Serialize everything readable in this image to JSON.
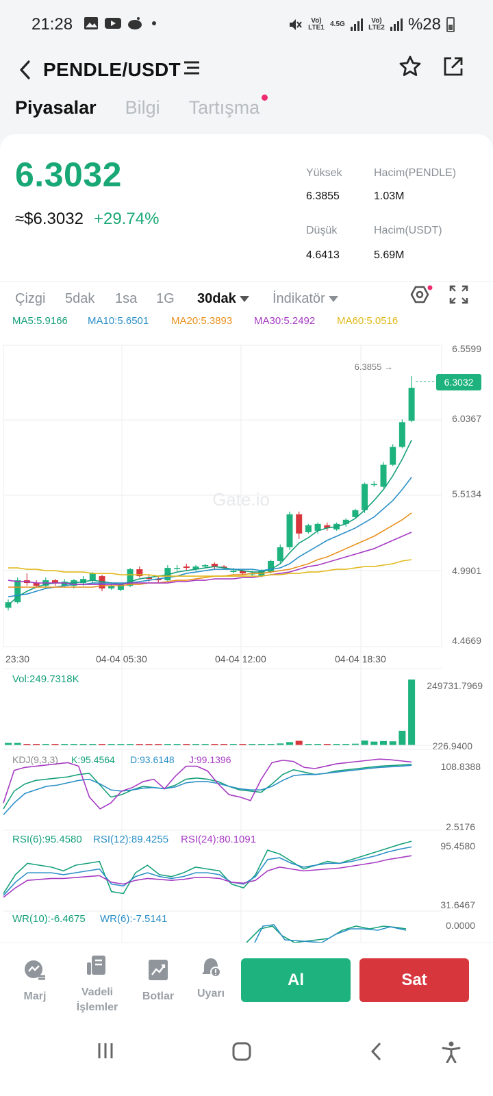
{
  "status_bar": {
    "time": "21:28",
    "left_icons": [
      "image-icon",
      "youtube-icon",
      "reddit-icon"
    ],
    "sim1_label": "Vo) LTE1",
    "net_label": "4.5G",
    "sim2_label": "Vo) LTE2",
    "battery_text": "%28"
  },
  "header": {
    "pair": "PENDLE/USDT",
    "icons": [
      "back-icon",
      "menu-icon",
      "star-icon",
      "share-icon"
    ]
  },
  "tabs": [
    {
      "label": "Piyasalar",
      "active": true
    },
    {
      "label": "Bilgi",
      "active": false
    },
    {
      "label": "Tartışma",
      "active": false,
      "notification_dot": true
    }
  ],
  "price": {
    "last": "6.3032",
    "usd": "≈$6.3032",
    "change": "+29.74%",
    "high_label": "Yüksek",
    "high_value": "6.3855",
    "low_label": "Düşük",
    "low_value": "4.6413",
    "vol_base_label": "Hacim(PENDLE)",
    "vol_base_value": "1.03M",
    "vol_quote_label": "Hacim(USDT)",
    "vol_quote_value": "5.69M"
  },
  "toolbar": {
    "items": [
      "Çizgi",
      "5dak",
      "1sa",
      "1G",
      "30dak",
      "İndikatör"
    ],
    "active": "30dak"
  },
  "ma_legend": [
    {
      "label": "MA5:5.9166",
      "color": "#16a07a"
    },
    {
      "label": "MA10:5.6501",
      "color": "#2b8fc7"
    },
    {
      "label": "MA20:5.3893",
      "color": "#e8911e"
    },
    {
      "label": "MA30:5.2492",
      "color": "#a63bc2"
    },
    {
      "label": "MA60:5.0516",
      "color": "#e0b91b"
    }
  ],
  "chart_data": {
    "type": "candlestick",
    "y_ticks": [
      "6.5599",
      "6.0367",
      "5.5134",
      "4.9901",
      "4.4669"
    ],
    "ylim": [
      4.4669,
      6.5599
    ],
    "x_ticks": [
      "23:30",
      "04-04 05:30",
      "04-04 12:00",
      "04-04 18:30"
    ],
    "high_marker": "6.3855",
    "last_price_tag": "6.3032",
    "watermark": "Gate.io",
    "candles": [
      {
        "o": 4.7,
        "c": 4.74,
        "h": 4.76,
        "l": 4.68
      },
      {
        "o": 4.74,
        "c": 4.9,
        "h": 4.92,
        "l": 4.73
      },
      {
        "o": 4.9,
        "c": 4.88,
        "h": 4.95,
        "l": 4.86
      },
      {
        "o": 4.88,
        "c": 4.86,
        "h": 4.9,
        "l": 4.85
      },
      {
        "o": 4.86,
        "c": 4.9,
        "h": 4.92,
        "l": 4.84
      },
      {
        "o": 4.9,
        "c": 4.88,
        "h": 4.91,
        "l": 4.86
      },
      {
        "o": 4.86,
        "c": 4.89,
        "h": 4.91,
        "l": 4.85
      },
      {
        "o": 4.86,
        "c": 4.9,
        "h": 4.91,
        "l": 4.84
      },
      {
        "o": 4.88,
        "c": 4.91,
        "h": 4.93,
        "l": 4.86
      },
      {
        "o": 4.9,
        "c": 4.95,
        "h": 4.96,
        "l": 4.88
      },
      {
        "o": 4.93,
        "c": 4.84,
        "h": 4.94,
        "l": 4.82
      },
      {
        "o": 4.84,
        "c": 4.86,
        "h": 4.88,
        "l": 4.83
      },
      {
        "o": 4.83,
        "c": 4.87,
        "h": 4.88,
        "l": 4.82
      },
      {
        "o": 4.86,
        "c": 4.98,
        "h": 4.99,
        "l": 4.85
      },
      {
        "o": 4.98,
        "c": 4.93,
        "h": 5.0,
        "l": 4.92
      },
      {
        "o": 4.92,
        "c": 4.91,
        "h": 4.94,
        "l": 4.89
      },
      {
        "o": 4.91,
        "c": 4.9,
        "h": 4.93,
        "l": 4.88
      },
      {
        "o": 4.9,
        "c": 4.99,
        "h": 5.01,
        "l": 4.89
      },
      {
        "o": 4.99,
        "c": 4.99,
        "h": 5.01,
        "l": 4.97
      },
      {
        "o": 5.0,
        "c": 4.99,
        "h": 5.02,
        "l": 4.97
      },
      {
        "o": 4.98,
        "c": 5.0,
        "h": 5.01,
        "l": 4.97
      },
      {
        "o": 5.0,
        "c": 5.01,
        "h": 5.02,
        "l": 4.99
      },
      {
        "o": 5.02,
        "c": 5.0,
        "h": 5.03,
        "l": 4.98
      },
      {
        "o": 5.0,
        "c": 4.99,
        "h": 5.01,
        "l": 4.98
      },
      {
        "o": 4.96,
        "c": 4.97,
        "h": 4.99,
        "l": 4.95
      },
      {
        "o": 4.97,
        "c": 4.95,
        "h": 4.98,
        "l": 4.94
      },
      {
        "o": 4.95,
        "c": 4.95,
        "h": 4.97,
        "l": 4.93
      },
      {
        "o": 4.93,
        "c": 4.97,
        "h": 4.98,
        "l": 4.92
      },
      {
        "o": 4.96,
        "c": 5.04,
        "h": 5.05,
        "l": 4.95
      },
      {
        "o": 5.04,
        "c": 5.14,
        "h": 5.16,
        "l": 5.02
      },
      {
        "o": 5.14,
        "c": 5.38,
        "h": 5.4,
        "l": 5.12
      },
      {
        "o": 5.38,
        "c": 5.24,
        "h": 5.4,
        "l": 5.2
      },
      {
        "o": 5.25,
        "c": 5.3,
        "h": 5.31,
        "l": 5.24
      },
      {
        "o": 5.26,
        "c": 5.31,
        "h": 5.32,
        "l": 5.24
      },
      {
        "o": 5.3,
        "c": 5.28,
        "h": 5.32,
        "l": 5.26
      },
      {
        "o": 5.27,
        "c": 5.31,
        "h": 5.32,
        "l": 5.26
      },
      {
        "o": 5.31,
        "c": 5.34,
        "h": 5.35,
        "l": 5.29
      },
      {
        "o": 5.36,
        "c": 5.41,
        "h": 5.42,
        "l": 5.35
      },
      {
        "o": 5.41,
        "c": 5.6,
        "h": 5.61,
        "l": 5.39
      },
      {
        "o": 5.6,
        "c": 5.6,
        "h": 5.62,
        "l": 5.58
      },
      {
        "o": 5.58,
        "c": 5.74,
        "h": 5.76,
        "l": 5.57
      },
      {
        "o": 5.74,
        "c": 5.87,
        "h": 5.89,
        "l": 5.73
      },
      {
        "o": 5.87,
        "c": 6.05,
        "h": 6.07,
        "l": 5.86
      },
      {
        "o": 6.06,
        "c": 6.3,
        "h": 6.3855,
        "l": 6.05
      }
    ],
    "ma_lines": {
      "MA5": [
        4.72,
        4.78,
        4.82,
        4.85,
        4.87,
        4.88,
        4.88,
        4.88,
        4.89,
        4.9,
        4.89,
        4.88,
        4.87,
        4.89,
        4.91,
        4.92,
        4.93,
        4.94,
        4.96,
        4.97,
        4.98,
        4.99,
        5.0,
        4.99,
        4.98,
        4.97,
        4.96,
        4.96,
        4.98,
        5.02,
        5.1,
        5.17,
        5.21,
        5.26,
        5.28,
        5.29,
        5.31,
        5.35,
        5.41,
        5.48,
        5.56,
        5.66,
        5.78,
        5.92
      ],
      "MA10": [
        4.78,
        4.79,
        4.8,
        4.82,
        4.84,
        4.85,
        4.86,
        4.87,
        4.87,
        4.88,
        4.88,
        4.88,
        4.88,
        4.88,
        4.89,
        4.9,
        4.91,
        4.92,
        4.93,
        4.95,
        4.96,
        4.97,
        4.98,
        4.98,
        4.98,
        4.98,
        4.98,
        4.97,
        4.98,
        4.99,
        5.02,
        5.07,
        5.11,
        5.15,
        5.19,
        5.22,
        5.25,
        5.28,
        5.32,
        5.36,
        5.42,
        5.48,
        5.56,
        5.65
      ],
      "MA20": [
        4.85,
        4.85,
        4.85,
        4.85,
        4.85,
        4.85,
        4.85,
        4.85,
        4.85,
        4.85,
        4.86,
        4.86,
        4.86,
        4.87,
        4.87,
        4.88,
        4.88,
        4.89,
        4.9,
        4.9,
        4.91,
        4.92,
        4.93,
        4.93,
        4.94,
        4.94,
        4.95,
        4.95,
        4.96,
        4.97,
        4.98,
        5.0,
        5.02,
        5.05,
        5.07,
        5.1,
        5.13,
        5.16,
        5.19,
        5.22,
        5.26,
        5.3,
        5.34,
        5.39
      ],
      "MA30": [
        4.9,
        4.89,
        4.89,
        4.88,
        4.88,
        4.88,
        4.88,
        4.87,
        4.87,
        4.87,
        4.87,
        4.87,
        4.87,
        4.88,
        4.88,
        4.88,
        4.88,
        4.88,
        4.89,
        4.89,
        4.9,
        4.9,
        4.91,
        4.91,
        4.91,
        4.92,
        4.92,
        4.93,
        4.94,
        4.95,
        4.96,
        4.98,
        5.0,
        5.01,
        5.03,
        5.05,
        5.07,
        5.09,
        5.11,
        5.13,
        5.16,
        5.19,
        5.22,
        5.25
      ],
      "MA60": [
        4.99,
        4.99,
        4.98,
        4.98,
        4.97,
        4.97,
        4.96,
        4.96,
        4.96,
        4.95,
        4.95,
        4.95,
        4.94,
        4.94,
        4.94,
        4.94,
        4.93,
        4.93,
        4.93,
        4.93,
        4.93,
        4.93,
        4.93,
        4.93,
        4.93,
        4.93,
        4.93,
        4.93,
        4.94,
        4.94,
        4.95,
        4.95,
        4.96,
        4.96,
        4.97,
        4.98,
        4.98,
        4.99,
        5.0,
        5.0,
        5.01,
        5.02,
        5.04,
        5.05
      ]
    },
    "volume": {
      "label": "Vol:249.7318K",
      "max_tick": "249731.7969",
      "min_tick": "226.9400",
      "values": [
        9000,
        9000,
        5000,
        4000,
        4000,
        3000,
        3000,
        3000,
        3000,
        3000,
        3000,
        3000,
        3000,
        3000,
        3000,
        3000,
        3000,
        3000,
        3000,
        3000,
        3000,
        3000,
        3000,
        3000,
        3000,
        3000,
        3000,
        3000,
        5000,
        7000,
        12000,
        17000,
        4000,
        4000,
        4000,
        4000,
        4000,
        6000,
        18000,
        14000,
        16000,
        15000,
        55000,
        249731.7969
      ]
    },
    "kdj": {
      "label_name": "KDJ(9,3,3)",
      "k_label": "K:95.4564",
      "d_label": "D:93.6148",
      "j_label": "J:99.1396",
      "max_tick": "108.8388",
      "min_tick": "2.5176",
      "K": [
        20,
        50,
        62,
        68,
        70,
        72,
        74,
        78,
        80,
        60,
        40,
        44,
        52,
        58,
        56,
        54,
        60,
        70,
        72,
        70,
        66,
        58,
        52,
        50,
        48,
        62,
        78,
        86,
        82,
        78,
        80,
        84,
        86,
        88,
        90,
        92,
        93,
        94,
        95
      ],
      "D": [
        10,
        30,
        46,
        52,
        58,
        60,
        64,
        68,
        70,
        62,
        52,
        50,
        52,
        55,
        56,
        54,
        57,
        64,
        66,
        66,
        63,
        58,
        54,
        52,
        52,
        58,
        68,
        76,
        78,
        78,
        80,
        82,
        84,
        86,
        88,
        90,
        91,
        92,
        93.6
      ],
      "J": [
        30,
        85,
        90,
        92,
        94,
        96,
        98,
        92,
        40,
        20,
        30,
        50,
        56,
        66,
        70,
        54,
        75,
        92,
        92,
        84,
        62,
        44,
        40,
        34,
        70,
        98,
        102,
        100,
        90,
        88,
        92,
        96,
        98,
        100,
        102,
        104,
        103,
        101,
        99.1
      ]
    },
    "rsi": {
      "l6": "RSI(6):95.4580",
      "l12": "RSI(12):89.4255",
      "l24": "RSI(24):80.1091",
      "max_tick": "95.4580",
      "min_tick": "31.6467",
      "R6": [
        40,
        60,
        72,
        70,
        68,
        64,
        70,
        72,
        74,
        42,
        40,
        62,
        70,
        60,
        58,
        62,
        68,
        66,
        64,
        50,
        46,
        60,
        86,
        82,
        74,
        66,
        70,
        74,
        72,
        76,
        80,
        84,
        88,
        92,
        95.4
      ],
      "R12": [
        38,
        52,
        62,
        62,
        62,
        60,
        62,
        64,
        66,
        50,
        48,
        58,
        62,
        58,
        56,
        58,
        62,
        62,
        60,
        52,
        50,
        58,
        76,
        78,
        72,
        68,
        70,
        72,
        72,
        74,
        77,
        80,
        84,
        87,
        89.4
      ],
      "R24": [
        36,
        46,
        54,
        55,
        56,
        56,
        57,
        58,
        59,
        52,
        50,
        54,
        56,
        55,
        54,
        55,
        57,
        57,
        56,
        52,
        51,
        54,
        64,
        68,
        66,
        64,
        65,
        66,
        67,
        69,
        71,
        73,
        76,
        78,
        80.1
      ]
    },
    "wr": {
      "l10": "WR(10):-6.4675",
      "l6": "WR(6):-7.5141",
      "top_tick": "0.0000"
    }
  },
  "actions": {
    "margin": "Marj",
    "futures_line1": "Vadeli",
    "futures_line2": "İşlemler",
    "bots": "Botlar",
    "alert": "Uyarı",
    "buy": "Al",
    "sell": "Sat"
  },
  "colors": {
    "up": "#1eb37e",
    "down": "#d8363d",
    "accent": "#18a875"
  }
}
